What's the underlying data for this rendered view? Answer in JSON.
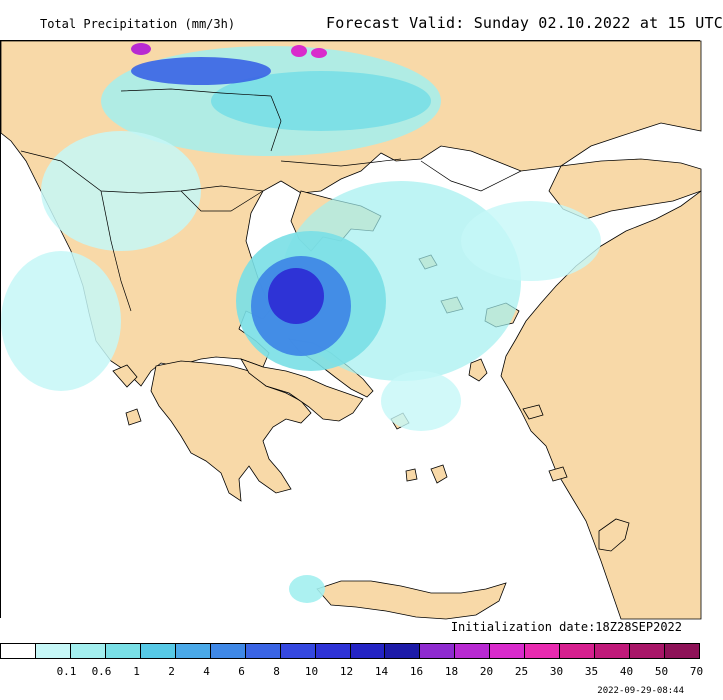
{
  "header": {
    "product_title": "Total Precipitation (mm/3h)",
    "forecast_valid": "Forecast Valid:  Sunday 02.10.2022 at 15 UTC"
  },
  "footer": {
    "initialization": "Initialization date:18Z28SEP2022",
    "generated": "2022-09-29-08:44"
  },
  "colors": {
    "land": "#f8d9a8",
    "sea": "#ffffff",
    "outline": "#000000"
  },
  "legend": {
    "bins": [
      {
        "label": "",
        "color": "#ffffff"
      },
      {
        "label": "0.1",
        "color": "#c6f7f7"
      },
      {
        "label": "0.6",
        "color": "#a3efef"
      },
      {
        "label": "1",
        "color": "#79dfe6"
      },
      {
        "label": "2",
        "color": "#57c9e6"
      },
      {
        "label": "4",
        "color": "#4aa9e8"
      },
      {
        "label": "6",
        "color": "#3f88e6"
      },
      {
        "label": "8",
        "color": "#3a64e4"
      },
      {
        "label": "10",
        "color": "#3548e0"
      },
      {
        "label": "12",
        "color": "#2e33d6"
      },
      {
        "label": "14",
        "color": "#2424c4"
      },
      {
        "label": "16",
        "color": "#1d1ba8"
      },
      {
        "label": "18",
        "color": "#8f2bd0"
      },
      {
        "label": "20",
        "color": "#b82ad2"
      },
      {
        "label": "25",
        "color": "#d92bcc"
      },
      {
        "label": "30",
        "color": "#e82bb0"
      },
      {
        "label": "35",
        "color": "#d6208f"
      },
      {
        "label": "40",
        "color": "#c01a7a"
      },
      {
        "label": "50",
        "color": "#a81668"
      },
      {
        "label": "70",
        "color": "#8e1258"
      }
    ]
  }
}
